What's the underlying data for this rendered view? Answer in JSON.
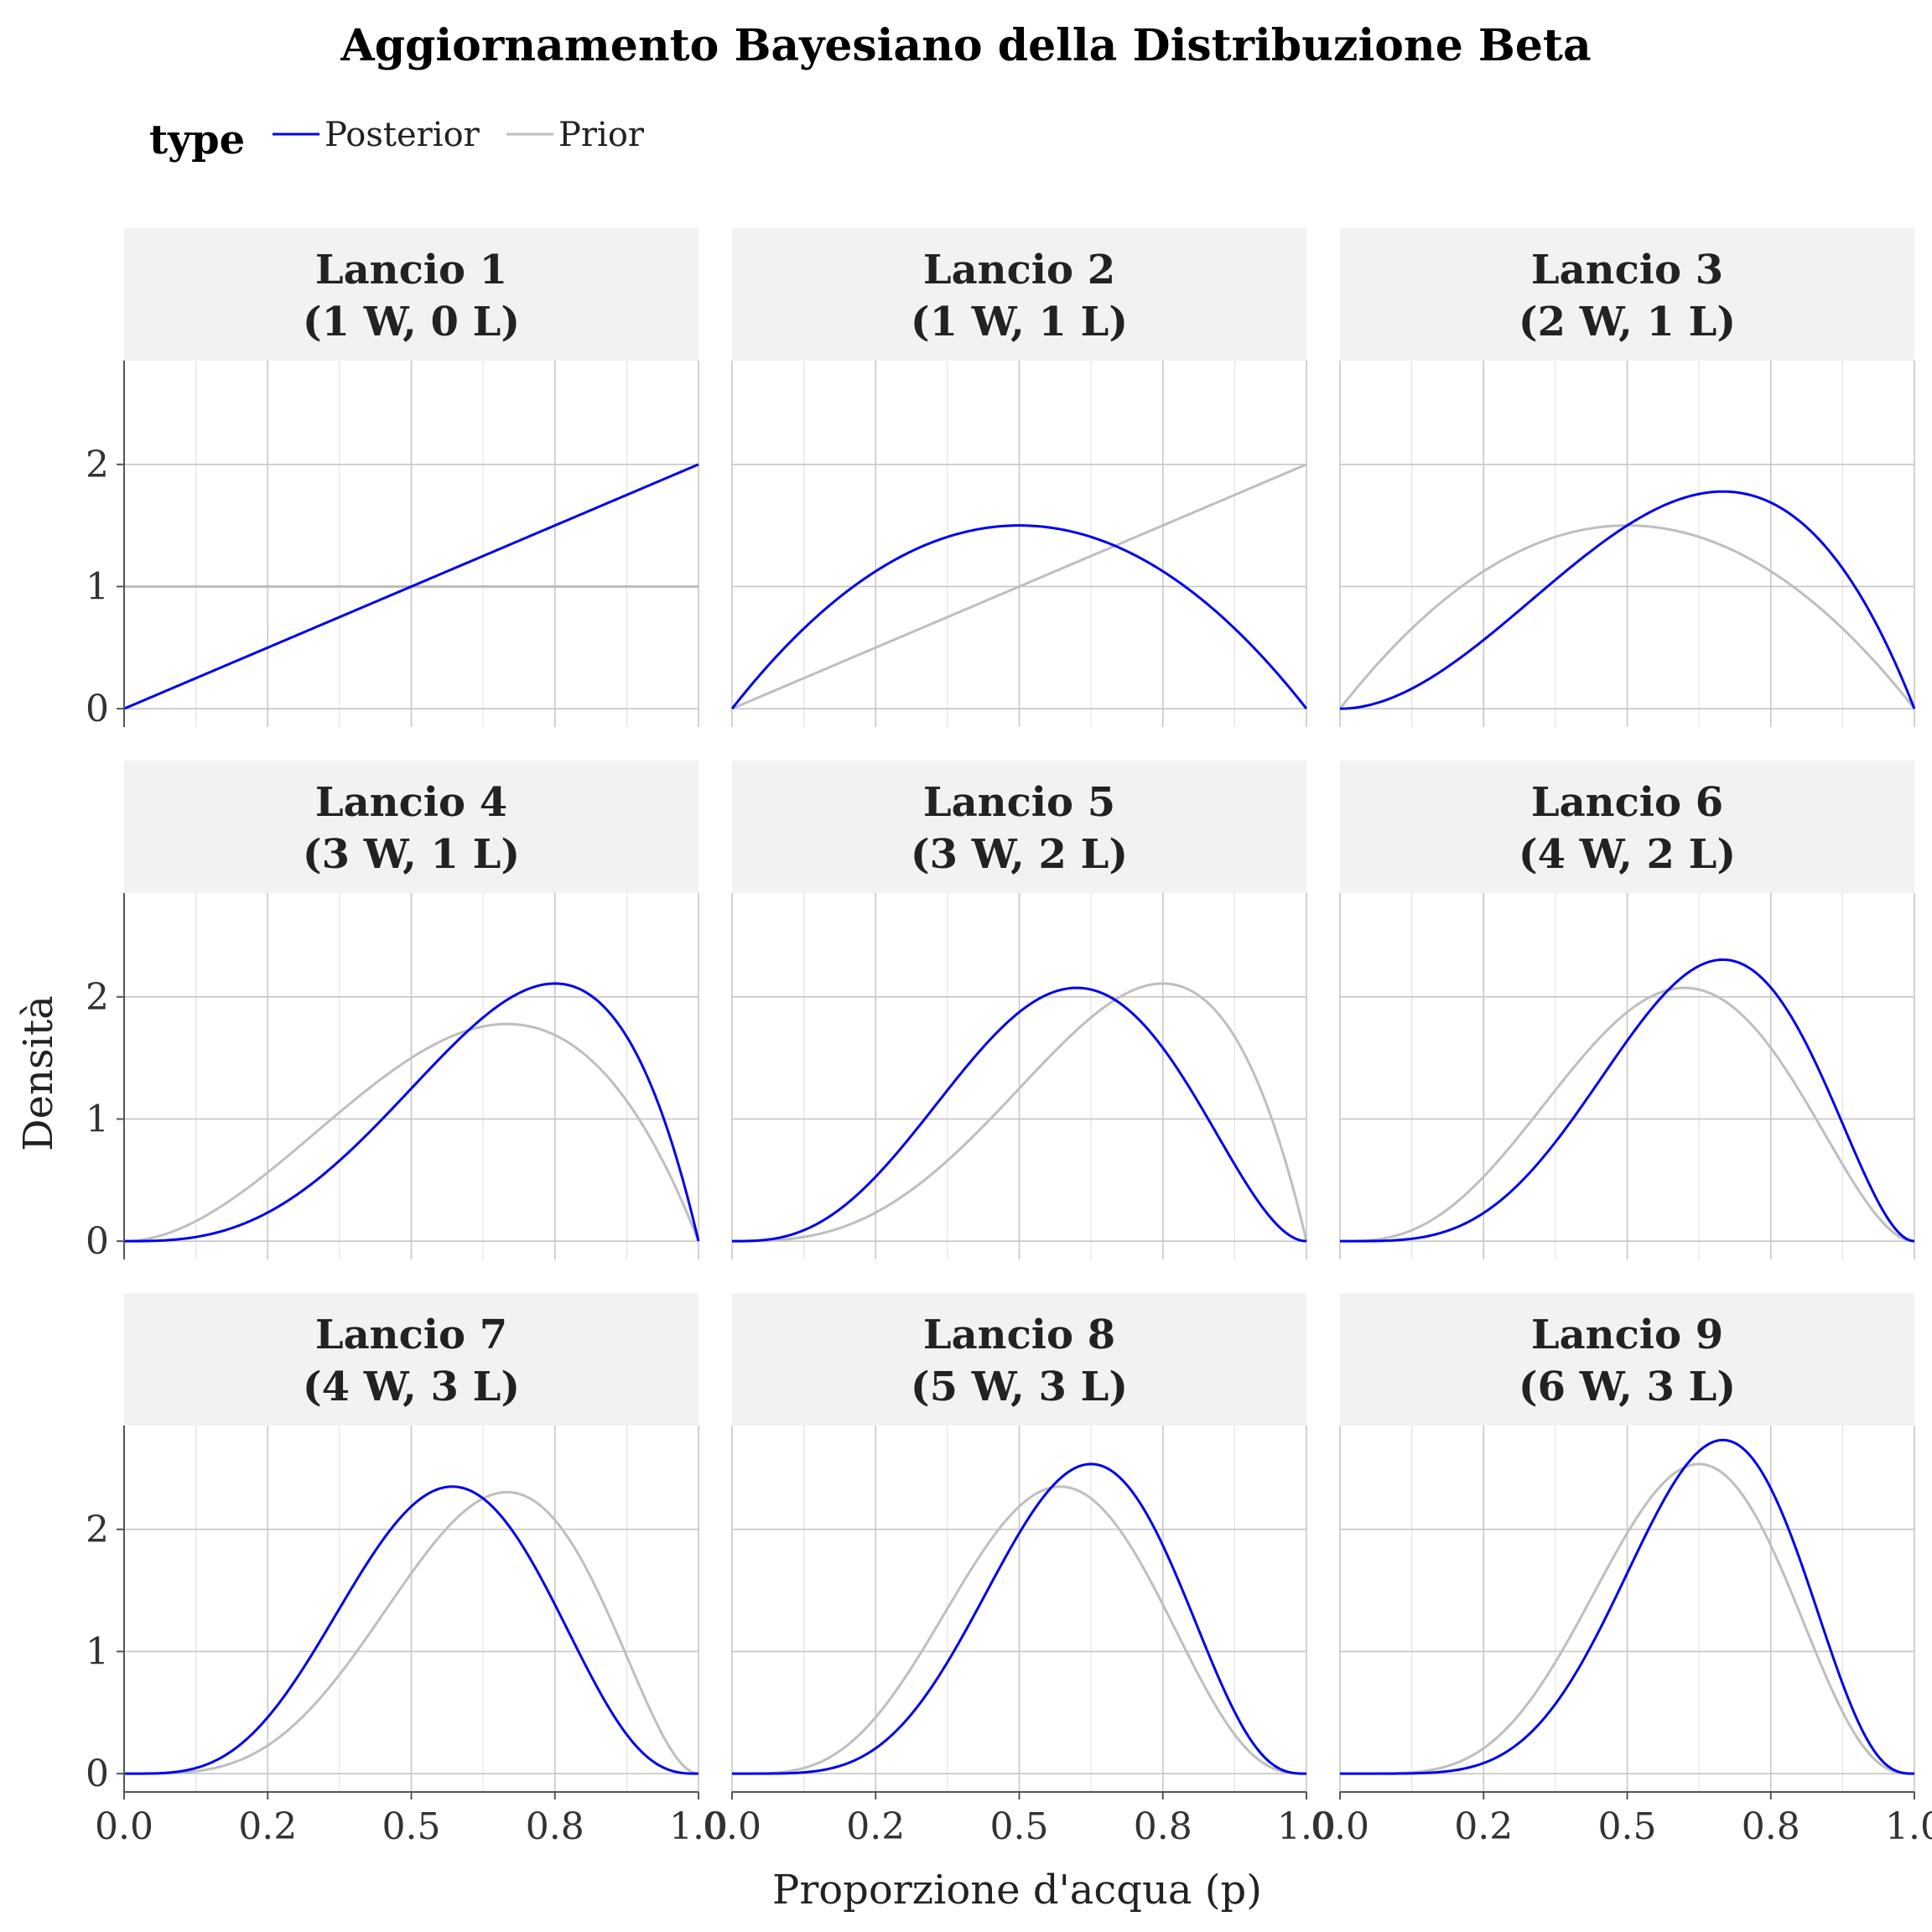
{
  "chart_data": {
    "type": "line",
    "title": "Aggiornamento Bayesiano della Distribuzione Beta",
    "xlabel": "Proporzione d'acqua (p)",
    "ylabel": "Densità",
    "xlim": [
      0,
      1
    ],
    "ylim": [
      -0.15,
      2.85
    ],
    "x_ticks": [
      0.0,
      0.25,
      0.5,
      0.75,
      1.0
    ],
    "x_tick_labels": [
      "0.0",
      "0.2",
      "0.5",
      "0.8",
      "1.0"
    ],
    "y_ticks": [
      0,
      1,
      2
    ],
    "y_tick_labels": [
      "0",
      "1",
      "2"
    ],
    "grid": true,
    "legend": {
      "title": "type",
      "position": "top-left",
      "entries": [
        {
          "name": "Posterior",
          "color": "#0000ee"
        },
        {
          "name": "Prior",
          "color": "#bebebe"
        }
      ]
    },
    "facets": [
      {
        "line1": "Lancio 1",
        "line2": "(1 W, 0 L)",
        "prior": {
          "a": 1,
          "b": 1
        },
        "posterior": {
          "a": 2,
          "b": 1
        }
      },
      {
        "line1": "Lancio 2",
        "line2": "(1 W, 1 L)",
        "prior": {
          "a": 2,
          "b": 1
        },
        "posterior": {
          "a": 2,
          "b": 2
        }
      },
      {
        "line1": "Lancio 3",
        "line2": "(2 W, 1 L)",
        "prior": {
          "a": 2,
          "b": 2
        },
        "posterior": {
          "a": 3,
          "b": 2
        }
      },
      {
        "line1": "Lancio 4",
        "line2": "(3 W, 1 L)",
        "prior": {
          "a": 3,
          "b": 2
        },
        "posterior": {
          "a": 4,
          "b": 2
        }
      },
      {
        "line1": "Lancio 5",
        "line2": "(3 W, 2 L)",
        "prior": {
          "a": 4,
          "b": 2
        },
        "posterior": {
          "a": 4,
          "b": 3
        }
      },
      {
        "line1": "Lancio 6",
        "line2": "(4 W, 2 L)",
        "prior": {
          "a": 4,
          "b": 3
        },
        "posterior": {
          "a": 5,
          "b": 3
        }
      },
      {
        "line1": "Lancio 7",
        "line2": "(4 W, 3 L)",
        "prior": {
          "a": 5,
          "b": 3
        },
        "posterior": {
          "a": 5,
          "b": 4
        }
      },
      {
        "line1": "Lancio 8",
        "line2": "(5 W, 3 L)",
        "prior": {
          "a": 5,
          "b": 4
        },
        "posterior": {
          "a": 6,
          "b": 4
        }
      },
      {
        "line1": "Lancio 9",
        "line2": "(6 W, 3 L)",
        "prior": {
          "a": 6,
          "b": 4
        },
        "posterior": {
          "a": 7,
          "b": 4
        }
      }
    ]
  }
}
